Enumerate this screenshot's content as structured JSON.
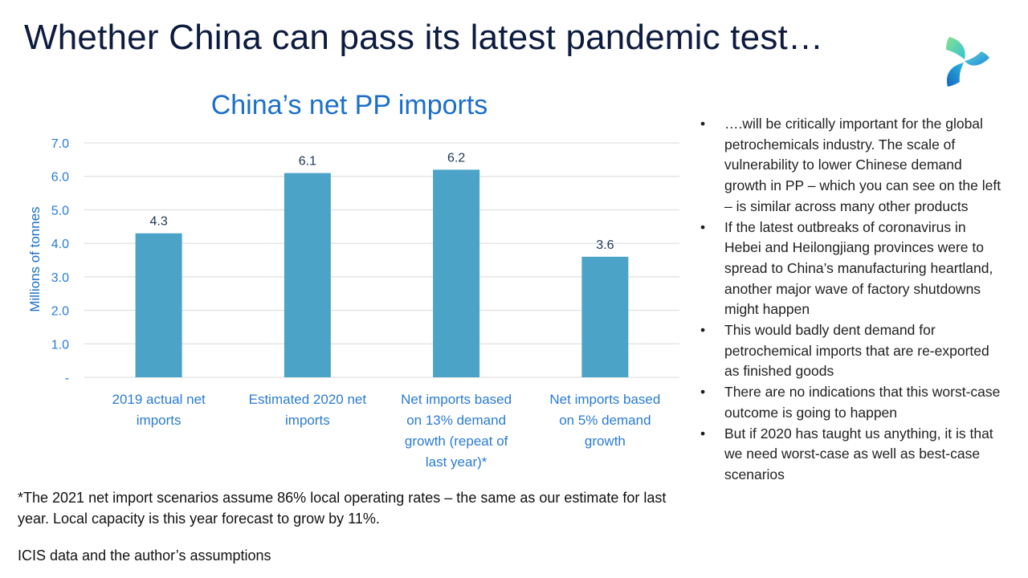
{
  "slide": {
    "title": "Whether China can pass its latest pandemic test…",
    "logo_icon": "three-petal-logo-icon"
  },
  "chart_data": {
    "type": "bar",
    "title": "China’s net PP imports",
    "ylabel": "Millions of tonnes",
    "xlabel": "",
    "ylim": [
      0,
      7.0
    ],
    "yticks": [
      0,
      1.0,
      2.0,
      3.0,
      4.0,
      5.0,
      6.0,
      7.0
    ],
    "ytick_labels": [
      "-",
      "1.0",
      "2.0",
      "3.0",
      "4.0",
      "5.0",
      "6.0",
      "7.0"
    ],
    "grid": true,
    "categories": [
      [
        "2019 actual net",
        "imports"
      ],
      [
        "Estimated 2020 net",
        "imports"
      ],
      [
        "Net imports based",
        "on 13% demand",
        "growth (repeat of",
        "last year)*"
      ],
      [
        "Net imports based",
        "on 5% demand",
        "growth"
      ]
    ],
    "values": [
      4.3,
      6.1,
      6.2,
      3.6
    ],
    "data_labels": [
      "4.3",
      "6.1",
      "6.2",
      "3.6"
    ],
    "bar_color": "#4ba4c8",
    "grid_color": "#d9d9d9",
    "label_color": "#2a7bd3"
  },
  "bullets": [
    "….will be critically important for the global petrochemicals industry. The scale of vulnerability to lower Chinese demand growth in PP – which you can see on the left – is similar across many other products",
    "If the latest outbreaks of coronavirus in Hebei and Heilongjiang provinces were to spread to China’s manufacturing heartland, another major wave of factory shutdowns might happen",
    "This would badly dent demand for petrochemical imports that are re-exported as finished goods",
    "There are no indications that this worst-case outcome is going to happen",
    "But if 2020 has taught us anything, it is that we need worst-case as well as best-case scenarios"
  ],
  "footnote": "*The 2021 net import scenarios assume 86% local operating rates – the same as our estimate for last year. Local capacity is this year forecast to grow by 11%.",
  "source": "ICIS data and the author’s assumptions"
}
